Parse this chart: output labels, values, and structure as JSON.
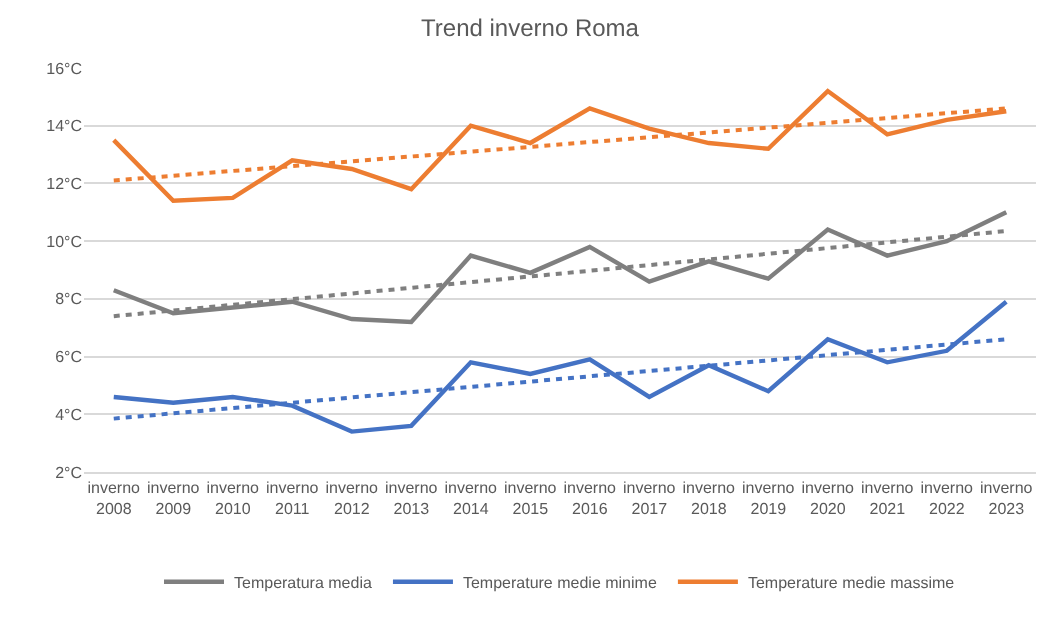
{
  "chart_data": {
    "type": "line",
    "title": "Trend inverno Roma",
    "categories": [
      "inverno 2008",
      "inverno 2009",
      "inverno 2010",
      "inverno 2011",
      "inverno 2012",
      "inverno 2013",
      "inverno 2014",
      "inverno 2015",
      "inverno 2016",
      "inverno 2017",
      "inverno 2018",
      "inverno 2019",
      "inverno 2020",
      "inverno 2021",
      "inverno 2022",
      "inverno 2023"
    ],
    "series": [
      {
        "name": "Temperatura media",
        "color": "#7f7f7f",
        "values": [
          8.3,
          7.5,
          7.7,
          7.9,
          7.3,
          7.2,
          9.5,
          8.9,
          9.8,
          8.6,
          9.3,
          8.7,
          10.4,
          9.5,
          10.0,
          11.0
        ]
      },
      {
        "name": "Temperature medie minime",
        "color": "#4472c4",
        "values": [
          4.6,
          4.4,
          4.6,
          4.3,
          3.4,
          3.6,
          5.8,
          5.4,
          5.9,
          4.6,
          5.7,
          4.8,
          6.6,
          5.8,
          6.2,
          7.9
        ]
      },
      {
        "name": "Temperature medie massime",
        "color": "#ed7d31",
        "values": [
          13.5,
          11.4,
          11.5,
          12.8,
          12.5,
          11.8,
          14.0,
          13.4,
          14.6,
          13.9,
          13.4,
          13.2,
          15.2,
          13.7,
          14.2,
          14.5
        ]
      },
      {
        "type": "line",
        "line_style": "dotted",
        "color": "#7f7f7f",
        "x": [
          "inverno 2008",
          "inverno 2023"
        ],
        "values": [
          7.4,
          10.35
        ]
      },
      {
        "type": "line",
        "line_style": "dotted",
        "color": "#4472c4",
        "x": [
          "inverno 2008",
          "inverno 2023"
        ],
        "values": [
          3.85,
          6.6
        ]
      },
      {
        "type": "line",
        "line_style": "dotted",
        "color": "#ed7d31",
        "x": [
          "inverno 2008",
          "inverno 2023"
        ],
        "values": [
          12.1,
          14.6
        ]
      }
    ],
    "ylim": [
      2,
      16
    ],
    "yticks": [
      {
        "value": 2,
        "label": "2°C"
      },
      {
        "value": 4,
        "label": "4°C"
      },
      {
        "value": 6,
        "label": "6°C"
      },
      {
        "value": 8,
        "label": "8°C"
      },
      {
        "value": 10,
        "label": "10°C"
      },
      {
        "value": 12,
        "label": "12°C"
      },
      {
        "value": 14,
        "label": "14°C"
      },
      {
        "value": 16,
        "label": "16°C"
      }
    ],
    "grid": "y",
    "legend": "bottom",
    "marker": "none",
    "line_style": "solid"
  }
}
